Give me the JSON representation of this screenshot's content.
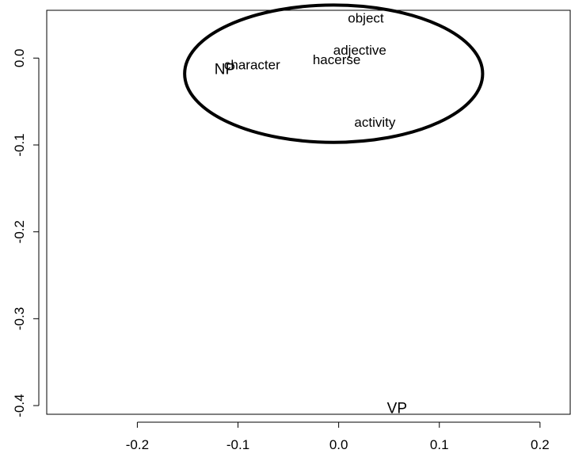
{
  "chart_data": {
    "type": "scatter",
    "title": "",
    "xlabel": "",
    "ylabel": "",
    "xlim": [
      -0.29,
      0.23
    ],
    "ylim": [
      -0.41,
      0.055
    ],
    "x_ticks": [
      {
        "value": -0.2,
        "label": "-0.2"
      },
      {
        "value": -0.1,
        "label": "-0.1"
      },
      {
        "value": 0.0,
        "label": "0.0"
      },
      {
        "value": 0.1,
        "label": "0.1"
      },
      {
        "value": 0.2,
        "label": "0.2"
      }
    ],
    "y_ticks": [
      {
        "value": 0.0,
        "label": "0.0"
      },
      {
        "value": -0.1,
        "label": "-0.1"
      },
      {
        "value": -0.2,
        "label": "-0.2"
      },
      {
        "value": -0.3,
        "label": "-0.3"
      },
      {
        "value": -0.4,
        "label": "-0.4"
      }
    ],
    "points": [
      {
        "label": "object",
        "x": 0.027,
        "y": 0.045
      },
      {
        "label": "adjective",
        "x": 0.021,
        "y": 0.008
      },
      {
        "label": "hacerse",
        "x": -0.002,
        "y": -0.003
      },
      {
        "label": "character",
        "x": -0.086,
        "y": -0.009
      },
      {
        "label": "NP",
        "x": -0.113,
        "y": -0.014,
        "emphasis": true
      },
      {
        "label": "activity",
        "x": 0.036,
        "y": -0.075
      },
      {
        "label": "VP",
        "x": 0.058,
        "y": -0.404,
        "emphasis": true
      }
    ],
    "ellipse": {
      "cx": -0.005,
      "cy": -0.018,
      "rx": 0.148,
      "ry": 0.079
    },
    "grid": false,
    "legend": "none",
    "colors": {
      "ink": "#000000",
      "background": "#ffffff"
    }
  }
}
